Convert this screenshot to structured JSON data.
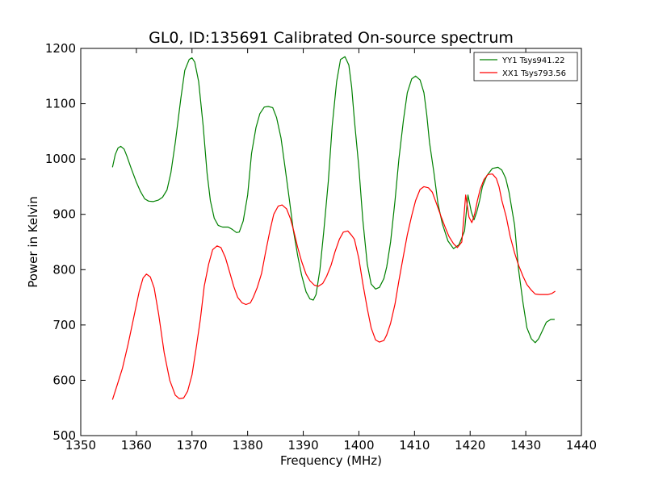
{
  "chart_data": {
    "type": "line",
    "title": "GL0, ID:135691 Calibrated On-source spectrum",
    "xlabel": "Frequency (MHz)",
    "ylabel": "Power in Kelvin",
    "xlim": [
      1350,
      1440
    ],
    "ylim": [
      500,
      1200
    ],
    "xticks": [
      1350,
      1360,
      1370,
      1380,
      1390,
      1400,
      1410,
      1420,
      1430,
      1440
    ],
    "yticks": [
      500,
      600,
      700,
      800,
      900,
      1000,
      1100,
      1200
    ],
    "xtick_labels": [
      "1350",
      "1360",
      "1370",
      "1380",
      "1390",
      "1400",
      "1410",
      "1420",
      "1430",
      "1440"
    ],
    "ytick_labels": [
      "500",
      "600",
      "700",
      "800",
      "900",
      "1000",
      "1100",
      "1200"
    ],
    "grid": false,
    "legend_position": "top-right",
    "series": [
      {
        "name": "YY1 Tsys941.22",
        "color": "#008000",
        "x": [
          1355.7,
          1356.2,
          1356.7,
          1357.2,
          1357.8,
          1358.3,
          1359.0,
          1360.0,
          1360.7,
          1361.5,
          1362.2,
          1363.0,
          1364.0,
          1364.7,
          1365.5,
          1366.2,
          1367.0,
          1368.0,
          1368.7,
          1369.5,
          1370.0,
          1370.5,
          1371.2,
          1372.0,
          1372.7,
          1373.3,
          1374.0,
          1374.7,
          1375.5,
          1376.5,
          1377.2,
          1378.0,
          1378.5,
          1379.2,
          1380.0,
          1380.7,
          1381.5,
          1382.2,
          1383.0,
          1383.7,
          1384.5,
          1385.2,
          1386.0,
          1386.7,
          1387.5,
          1388.2,
          1389.0,
          1389.7,
          1390.5,
          1391.2,
          1391.8,
          1392.3,
          1393.0,
          1393.7,
          1394.5,
          1395.2,
          1396.0,
          1396.7,
          1397.5,
          1398.2,
          1398.7,
          1399.2,
          1400.0,
          1400.7,
          1401.5,
          1402.2,
          1403.0,
          1403.7,
          1404.5,
          1405.0,
          1405.7,
          1406.5,
          1407.2,
          1408.0,
          1408.7,
          1409.5,
          1410.2,
          1411.0,
          1411.7,
          1412.2,
          1412.7,
          1413.5,
          1414.2,
          1415.0,
          1416.0,
          1417.0,
          1418.0,
          1419.0,
          1419.6,
          1420.2,
          1420.7,
          1421.2,
          1421.7,
          1422.2,
          1423.0,
          1424.0,
          1425.0,
          1425.7,
          1426.4,
          1427.0,
          1428.0,
          1428.7,
          1429.5,
          1430.2,
          1431.0,
          1431.7,
          1432.3,
          1433.0,
          1433.7,
          1434.5,
          1435.2
        ],
        "values": [
          985,
          1008,
          1020,
          1023,
          1018,
          1005,
          985,
          958,
          942,
          928,
          924,
          923,
          926,
          931,
          944,
          975,
          1030,
          1110,
          1160,
          1180,
          1183,
          1175,
          1140,
          1060,
          975,
          925,
          893,
          880,
          877,
          877,
          873,
          867,
          868,
          888,
          935,
          1010,
          1057,
          1082,
          1094,
          1095,
          1093,
          1075,
          1038,
          987,
          927,
          872,
          825,
          790,
          760,
          747,
          745,
          755,
          800,
          870,
          960,
          1060,
          1140,
          1180,
          1185,
          1170,
          1130,
          1070,
          985,
          890,
          810,
          774,
          765,
          768,
          784,
          805,
          850,
          925,
          1000,
          1070,
          1120,
          1145,
          1150,
          1143,
          1120,
          1080,
          1030,
          975,
          920,
          883,
          852,
          838,
          845,
          870,
          935,
          905,
          890,
          905,
          925,
          950,
          970,
          983,
          985,
          980,
          965,
          940,
          880,
          800,
          740,
          695,
          675,
          668,
          675,
          690,
          705,
          710,
          710
        ]
      },
      {
        "name": "XX1 Tsys793.56",
        "color": "#ff0000",
        "x": [
          1355.7,
          1356.5,
          1357.5,
          1358.5,
          1359.5,
          1360.5,
          1361.2,
          1361.8,
          1362.5,
          1363.2,
          1364.0,
          1365.0,
          1366.0,
          1367.0,
          1367.7,
          1368.5,
          1369.2,
          1370.0,
          1370.7,
          1371.5,
          1372.2,
          1373.0,
          1373.7,
          1374.5,
          1375.2,
          1376.0,
          1376.7,
          1377.5,
          1378.2,
          1379.0,
          1379.7,
          1380.5,
          1381.0,
          1381.7,
          1382.5,
          1383.2,
          1384.0,
          1384.7,
          1385.5,
          1386.2,
          1387.0,
          1387.7,
          1388.3,
          1389.0,
          1389.7,
          1390.5,
          1391.2,
          1392.0,
          1392.7,
          1393.5,
          1394.2,
          1395.0,
          1395.7,
          1396.5,
          1397.2,
          1398.0,
          1398.7,
          1399.2,
          1400.0,
          1400.7,
          1401.5,
          1402.2,
          1403.0,
          1403.7,
          1404.5,
          1405.0,
          1405.7,
          1406.5,
          1407.2,
          1408.0,
          1408.7,
          1409.5,
          1410.2,
          1411.0,
          1411.7,
          1412.5,
          1413.2,
          1414.0,
          1414.7,
          1415.5,
          1416.2,
          1417.0,
          1417.7,
          1418.5,
          1419.2,
          1419.8,
          1420.3,
          1420.8,
          1421.3,
          1421.8,
          1422.5,
          1423.2,
          1424.0,
          1424.7,
          1425.2,
          1425.7,
          1426.5,
          1427.2,
          1428.0,
          1428.7,
          1429.5,
          1430.2,
          1431.0,
          1431.7,
          1432.5,
          1433.2,
          1434.0,
          1434.7,
          1435.3
        ],
        "values": [
          565,
          590,
          622,
          665,
          712,
          760,
          785,
          792,
          787,
          767,
          720,
          650,
          600,
          573,
          567,
          568,
          580,
          610,
          655,
          710,
          770,
          810,
          836,
          843,
          840,
          822,
          798,
          770,
          750,
          740,
          737,
          740,
          750,
          767,
          793,
          830,
          870,
          900,
          915,
          917,
          910,
          892,
          870,
          840,
          815,
          792,
          780,
          772,
          770,
          775,
          788,
          808,
          832,
          855,
          868,
          870,
          862,
          855,
          820,
          775,
          730,
          695,
          673,
          669,
          672,
          682,
          703,
          738,
          780,
          825,
          863,
          898,
          925,
          945,
          950,
          948,
          940,
          918,
          898,
          877,
          860,
          847,
          840,
          850,
          935,
          895,
          885,
          900,
          925,
          945,
          963,
          972,
          973,
          965,
          950,
          925,
          895,
          860,
          830,
          808,
          788,
          773,
          763,
          756,
          755,
          755,
          755,
          757,
          761
        ]
      }
    ]
  }
}
